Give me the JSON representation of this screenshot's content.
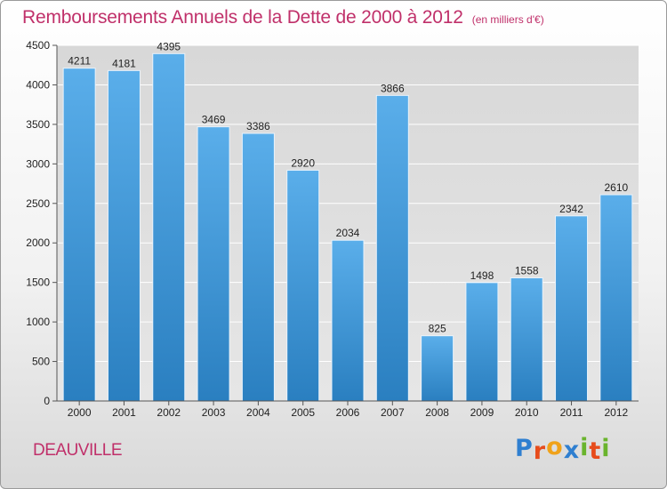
{
  "header": {
    "title": "Remboursements Annuels de la Dette de 2000 à 2012",
    "unit": "(en milliers d'€)"
  },
  "commune": "DEAUVILLE",
  "logo": {
    "text": "Proxiti",
    "letters": [
      {
        "ch": "P",
        "color": "#2f7fd0"
      },
      {
        "ch": "r",
        "color": "#e74c1c"
      },
      {
        "ch": "o",
        "color": "#f0a21a"
      },
      {
        "ch": "x",
        "color": "#2f7fd0"
      },
      {
        "ch": "i",
        "color": "#6ab42d"
      },
      {
        "ch": "t",
        "color": "#e74c1c"
      },
      {
        "ch": "i",
        "color": "#6ab42d"
      }
    ]
  },
  "colors": {
    "title": "#c0306a",
    "bar_top": "#5aaeea",
    "bar_bottom": "#2a7fc0",
    "grid": "#ffffff",
    "axis": "#555555",
    "text": "#222222"
  },
  "chart_data": {
    "type": "bar",
    "title": "Remboursements Annuels de la Dette de 2000 à 2012",
    "subtitle": "(en milliers d'€)",
    "xlabel": "",
    "ylabel": "",
    "categories": [
      "2000",
      "2001",
      "2002",
      "2003",
      "2004",
      "2005",
      "2006",
      "2007",
      "2008",
      "2009",
      "2010",
      "2011",
      "2012"
    ],
    "values": [
      4211,
      4181,
      4395,
      3469,
      3386,
      2920,
      2034,
      3866,
      825,
      1498,
      1558,
      2342,
      2610
    ],
    "data_labels": [
      "4211",
      "4181",
      "4395",
      "3469",
      "3386",
      "2920",
      "2034",
      "3866",
      "825",
      "1498",
      "1558",
      "2342",
      "2610"
    ],
    "ylim": [
      0,
      4500
    ],
    "yticks": [
      0,
      500,
      1000,
      1500,
      2000,
      2500,
      3000,
      3500,
      4000,
      4500
    ],
    "ytick_labels": [
      "0",
      "500",
      "1000",
      "1500",
      "2000",
      "2500",
      "3000",
      "3500",
      "4000",
      "4500"
    ],
    "grid": true,
    "legend": "none"
  }
}
